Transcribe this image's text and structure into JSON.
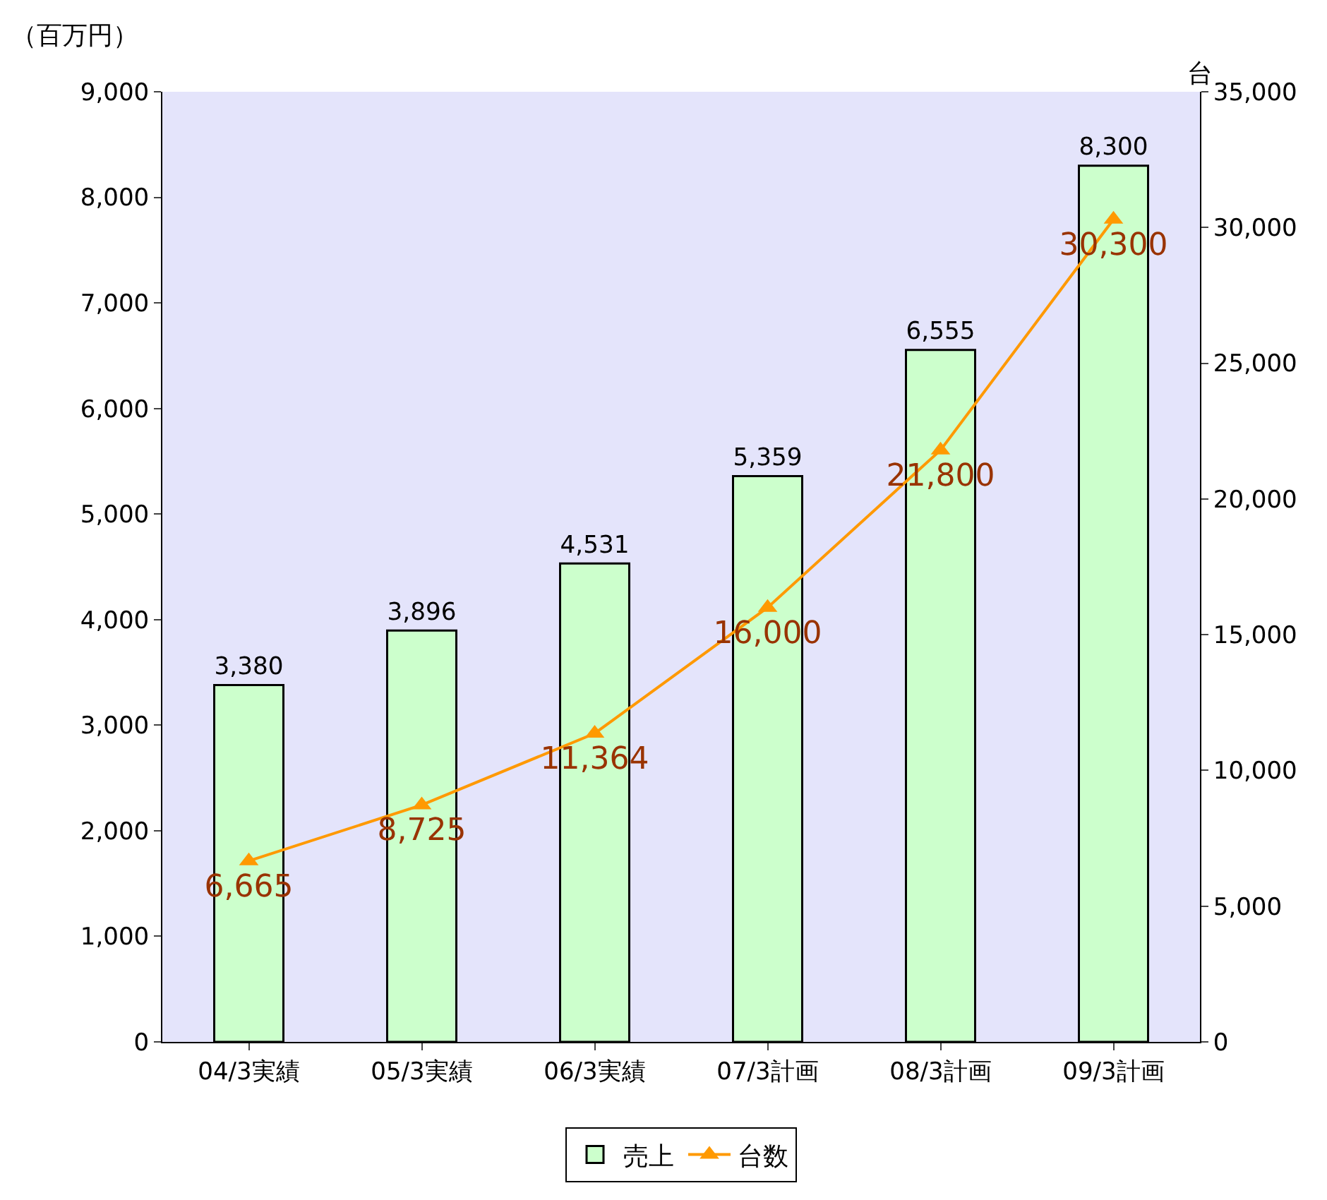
{
  "chart_data": {
    "type": "bar",
    "ylabel": "（百万円）",
    "y2label": "台",
    "categories": [
      "04/3実績",
      "05/3実績",
      "06/3実績",
      "07/3計画",
      "08/3計画",
      "09/3計画"
    ],
    "series": [
      {
        "name": "売上",
        "color": "#ccffcc",
        "values": [
          3380,
          3896,
          4531,
          5359,
          6555,
          8300
        ],
        "value_labels": [
          "3,380",
          "3,896",
          "4,531",
          "5,359",
          "6,555",
          "8,300"
        ]
      },
      {
        "name": "台数",
        "type": "line",
        "axis": "y2",
        "color": "#ff9900",
        "values": [
          6665,
          8725,
          11364,
          16000,
          21800,
          30300
        ],
        "value_labels": [
          "6,665",
          "8,725",
          "11,364",
          "16,000",
          "21,800",
          "30,300"
        ]
      }
    ],
    "ylim": [
      0,
      9000
    ],
    "yticks": [
      0,
      {
        "value": 1000,
        "label": "1,000"
      },
      {
        "value": 2000,
        "label": "2,000"
      },
      {
        "value": 3000,
        "label": "3,000"
      },
      {
        "value": 4000,
        "label": "4,000"
      },
      {
        "value": 5000,
        "label": "5,000"
      },
      {
        "value": 6000,
        "label": "6,000"
      },
      {
        "value": 7000,
        "label": "7,000"
      },
      {
        "value": 8000,
        "label": "8,000"
      },
      {
        "value": 9000,
        "label": "9,000"
      }
    ],
    "y2lim": [
      0,
      35000
    ],
    "y2ticks": [
      0,
      {
        "value": 5000,
        "label": "5,000"
      },
      {
        "value": 10000,
        "label": "10,000"
      },
      {
        "value": 15000,
        "label": "15,000"
      },
      {
        "value": 20000,
        "label": "20,000"
      },
      {
        "value": 25000,
        "label": "25,000"
      },
      {
        "value": 30000,
        "label": "30,000"
      },
      {
        "value": 35000,
        "label": "35,000"
      }
    ],
    "marker": "triangle",
    "line_style": "solid",
    "grid": false,
    "legend": "bottom"
  }
}
